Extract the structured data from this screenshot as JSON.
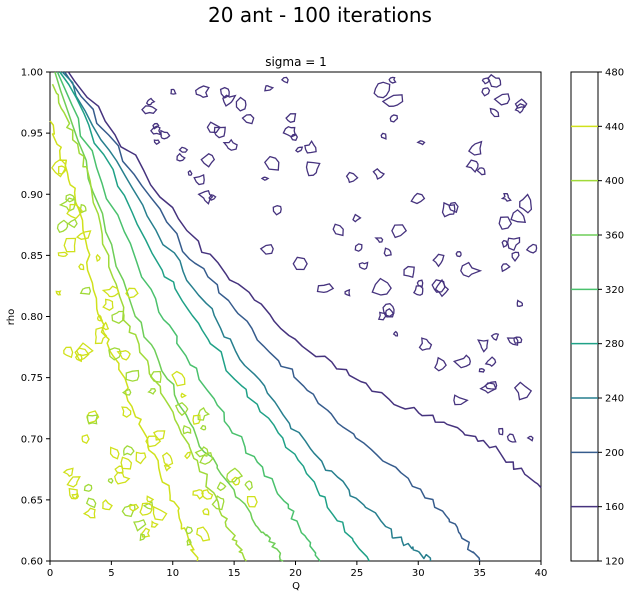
{
  "chart_data": {
    "type": "contour",
    "suptitle": "20 ant - 100 iterations",
    "title": "sigma = 1",
    "xlabel": "Q",
    "ylabel": "rho",
    "xlim": [
      0,
      40
    ],
    "ylim": [
      0.6,
      1.0
    ],
    "x_ticks": [
      "0",
      "5",
      "10",
      "15",
      "20",
      "25",
      "30",
      "35",
      "40"
    ],
    "y_ticks": [
      "0.60",
      "0.65",
      "0.70",
      "0.75",
      "0.80",
      "0.85",
      "0.90",
      "0.95",
      "1.00"
    ],
    "x_tick_values": [
      0,
      5,
      10,
      15,
      20,
      25,
      30,
      35,
      40
    ],
    "y_tick_values": [
      0.6,
      0.65,
      0.7,
      0.75,
      0.8,
      0.85,
      0.9,
      0.95,
      1.0
    ],
    "colorbar": {
      "ticks": [
        "120",
        "160",
        "200",
        "240",
        "280",
        "320",
        "360",
        "400",
        "440",
        "480"
      ],
      "tick_values": [
        120,
        160,
        200,
        240,
        280,
        320,
        360,
        400,
        440,
        480
      ],
      "range": [
        120,
        480
      ]
    },
    "levels": [
      {
        "value": 160,
        "color": "#46337e",
        "line": [
          [
            1.5,
            1.0
          ],
          [
            12,
            0.86
          ],
          [
            20,
            0.78
          ],
          [
            28,
            0.73
          ],
          [
            35,
            0.7
          ],
          [
            40,
            0.66
          ]
        ]
      },
      {
        "value": 200,
        "color": "#365c8d",
        "line": [
          [
            1.2,
            1.0
          ],
          [
            11,
            0.855
          ],
          [
            18,
            0.77
          ],
          [
            25,
            0.7
          ],
          [
            32,
            0.64
          ],
          [
            35,
            0.6
          ]
        ]
      },
      {
        "value": 240,
        "color": "#277f8e",
        "line": [
          [
            1.0,
            1.0
          ],
          [
            10,
            0.85
          ],
          [
            16,
            0.76
          ],
          [
            22,
            0.68
          ],
          [
            28,
            0.62
          ],
          [
            31,
            0.6
          ]
        ]
      },
      {
        "value": 280,
        "color": "#1fa187",
        "line": [
          [
            0.8,
            1.0
          ],
          [
            9,
            0.84
          ],
          [
            15,
            0.75
          ],
          [
            21,
            0.67
          ],
          [
            26,
            0.6
          ]
        ]
      },
      {
        "value": 320,
        "color": "#4ac16d",
        "line": [
          [
            0.6,
            1.0
          ],
          [
            8,
            0.82
          ],
          [
            14,
            0.72
          ],
          [
            19,
            0.65
          ],
          [
            22,
            0.6
          ]
        ]
      },
      {
        "value": 360,
        "color": "#6ece58",
        "line": [
          [
            0.4,
            1.0
          ],
          [
            7,
            0.8
          ],
          [
            12,
            0.7
          ],
          [
            17,
            0.63
          ],
          [
            19,
            0.6
          ]
        ]
      },
      {
        "value": 400,
        "color": "#a0da39",
        "line": [
          [
            0.2,
            0.99
          ],
          [
            3,
            0.92
          ],
          [
            6,
            0.8
          ],
          [
            10,
            0.72
          ],
          [
            14,
            0.64
          ],
          [
            16,
            0.6
          ]
        ]
      },
      {
        "value": 440,
        "color": "#d0e11c",
        "line": [
          [
            0.0,
            0.96
          ],
          [
            2,
            0.9
          ],
          [
            4,
            0.8
          ],
          [
            7,
            0.72
          ],
          [
            10,
            0.65
          ],
          [
            12,
            0.6
          ]
        ]
      }
    ],
    "colors": {
      "colorbar_low": "#440154",
      "colorbar_high": "#fde725"
    }
  }
}
